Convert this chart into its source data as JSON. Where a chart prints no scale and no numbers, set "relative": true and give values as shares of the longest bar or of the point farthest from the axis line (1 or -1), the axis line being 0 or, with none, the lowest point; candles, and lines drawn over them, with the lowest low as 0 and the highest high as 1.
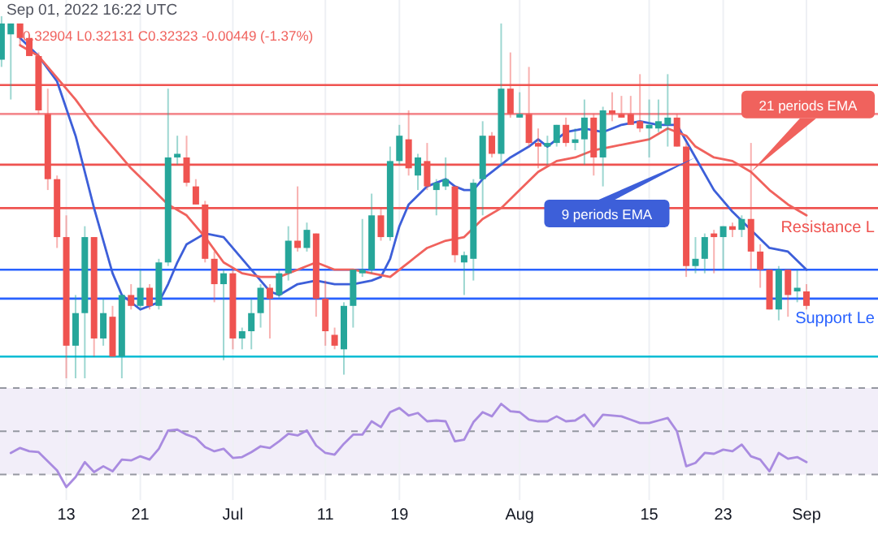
{
  "chart_data": [
    {
      "type": "candlestick",
      "relative": true,
      "tick_labels": false,
      "grid": "x",
      "annotations": [
        "Sep 01, 2022 16:22 UTC",
        "0.32904 L0.32131 C0.32323 -0.00449 (-1.37%)"
      ],
      "xlim": [
        "2022-06-05T20:00",
        "2022-09-08T17:30"
      ],
      "xticks": [
        {
          "value": "2022-06-13",
          "label": null
        },
        {
          "value": "2022-06-21",
          "label": null
        },
        {
          "value": "2022-07-01",
          "label": null
        },
        {
          "value": "2022-07-11",
          "label": null
        },
        {
          "value": "2022-07-19",
          "label": null
        },
        {
          "value": "2022-08-01",
          "label": null
        },
        {
          "value": "2022-08-15",
          "label": null
        },
        {
          "value": "2022-08-23",
          "label": null
        },
        {
          "value": "2022-09-01",
          "label": null
        }
      ],
      "x": [
        "2022-06-06",
        "2022-06-07",
        "2022-06-08",
        "2022-06-09",
        "2022-06-10",
        "2022-06-11",
        "2022-06-12",
        "2022-06-13",
        "2022-06-14",
        "2022-06-15",
        "2022-06-16",
        "2022-06-17",
        "2022-06-18",
        "2022-06-19",
        "2022-06-20",
        "2022-06-21",
        "2022-06-22",
        "2022-06-23",
        "2022-06-24",
        "2022-06-25",
        "2022-06-26",
        "2022-06-27",
        "2022-06-28",
        "2022-06-29",
        "2022-06-30",
        "2022-07-01",
        "2022-07-02",
        "2022-07-03",
        "2022-07-04",
        "2022-07-05",
        "2022-07-06",
        "2022-07-07",
        "2022-07-08",
        "2022-07-09",
        "2022-07-10",
        "2022-07-11",
        "2022-07-12",
        "2022-07-13",
        "2022-07-14",
        "2022-07-15",
        "2022-07-16",
        "2022-07-17",
        "2022-07-18",
        "2022-07-19",
        "2022-07-20",
        "2022-07-21",
        "2022-07-22",
        "2022-07-23",
        "2022-07-24",
        "2022-07-25",
        "2022-07-26",
        "2022-07-27",
        "2022-07-28",
        "2022-07-29",
        "2022-07-30",
        "2022-07-31",
        "2022-08-01",
        "2022-08-02",
        "2022-08-03",
        "2022-08-04",
        "2022-08-05",
        "2022-08-06",
        "2022-08-07",
        "2022-08-08",
        "2022-08-09",
        "2022-08-10",
        "2022-08-11",
        "2022-08-12",
        "2022-08-13",
        "2022-08-14",
        "2022-08-15",
        "2022-08-16",
        "2022-08-17",
        "2022-08-18",
        "2022-08-19",
        "2022-08-20",
        "2022-08-21",
        "2022-08-22",
        "2022-08-23",
        "2022-08-24",
        "2022-08-25",
        "2022-08-26",
        "2022-08-27",
        "2022-08-28",
        "2022-08-29",
        "2022-08-30",
        "2022-08-31",
        "2022-09-01"
      ],
      "ohlc": [
        [
          0.88,
          1.0,
          0.86,
          0.98
        ],
        [
          0.95,
          0.98,
          0.77,
          0.98
        ],
        [
          0.98,
          0.98,
          0.92,
          0.94
        ],
        [
          0.94,
          0.95,
          0.89,
          0.89
        ],
        [
          0.89,
          0.9,
          0.73,
          0.74
        ],
        [
          0.73,
          0.8,
          0.52,
          0.55
        ],
        [
          0.55,
          0.56,
          0.36,
          0.39
        ],
        [
          0.39,
          0.45,
          0,
          0.09
        ],
        [
          0.09,
          0.23,
          0,
          0.18
        ],
        [
          0.18,
          0.42,
          0,
          0.39
        ],
        [
          0.39,
          0.39,
          0.06,
          0.11
        ],
        [
          0.11,
          0.22,
          0.09,
          0.18
        ],
        [
          0.17,
          0.2,
          0.06,
          0.06
        ],
        [
          0.06,
          0.23,
          0,
          0.23
        ],
        [
          0.23,
          0.26,
          0.19,
          0.2
        ],
        [
          0.2,
          0.3,
          0.19,
          0.25
        ],
        [
          0.25,
          0.26,
          0.19,
          0.2
        ],
        [
          0.2,
          0.33,
          0.19,
          0.32
        ],
        [
          0.32,
          0.8,
          0.31,
          0.61
        ],
        [
          0.61,
          0.67,
          0.59,
          0.62
        ],
        [
          0.61,
          0.67,
          0.53,
          0.54
        ],
        [
          0.53,
          0.55,
          0.48,
          0.48
        ],
        [
          0.48,
          0.49,
          0.32,
          0.33
        ],
        [
          0.33,
          0.35,
          0.21,
          0.26
        ],
        [
          0.26,
          0.3,
          0.05,
          0.29
        ],
        [
          0.29,
          0.3,
          0.08,
          0.11
        ],
        [
          0.11,
          0.14,
          0.08,
          0.13
        ],
        [
          0.13,
          0.22,
          0.08,
          0.18
        ],
        [
          0.18,
          0.26,
          0.14,
          0.25
        ],
        [
          0.25,
          0.26,
          0.11,
          0.22
        ],
        [
          0.23,
          0.3,
          0.22,
          0.29
        ],
        [
          0.29,
          0.42,
          0.27,
          0.38
        ],
        [
          0.38,
          0.53,
          0.35,
          0.36
        ],
        [
          0.36,
          0.43,
          0.35,
          0.41
        ],
        [
          0.4,
          0.4,
          0.17,
          0.22
        ],
        [
          0.22,
          0.27,
          0.09,
          0.13
        ],
        [
          0.12,
          0.14,
          0.08,
          0.09
        ],
        [
          0.08,
          0.21,
          0.01,
          0.2
        ],
        [
          0.2,
          0.3,
          0.14,
          0.3
        ],
        [
          0.29,
          0.44,
          0.28,
          0.3
        ],
        [
          0.3,
          0.51,
          0.29,
          0.45
        ],
        [
          0.45,
          0.47,
          0.38,
          0.39
        ],
        [
          0.39,
          0.64,
          0.38,
          0.6
        ],
        [
          0.6,
          0.7,
          0.59,
          0.67
        ],
        [
          0.66,
          0.74,
          0.56,
          0.58
        ],
        [
          0.56,
          0.62,
          0.52,
          0.61
        ],
        [
          0.6,
          0.65,
          0.52,
          0.53
        ],
        [
          0.52,
          0.55,
          0.45,
          0.54
        ],
        [
          0.53,
          0.61,
          0.52,
          0.55
        ],
        [
          0.53,
          0.53,
          0.32,
          0.34
        ],
        [
          0.32,
          0.35,
          0.23,
          0.34
        ],
        [
          0.33,
          0.55,
          0.27,
          0.54
        ],
        [
          0.55,
          0.71,
          0.45,
          0.67
        ],
        [
          0.67,
          0.68,
          0.61,
          0.62
        ],
        [
          0.62,
          0.98,
          0.59,
          0.8
        ],
        [
          0.8,
          0.9,
          0.72,
          0.73
        ],
        [
          0.72,
          0.79,
          0.72,
          0.73
        ],
        [
          0.73,
          0.86,
          0.64,
          0.65
        ],
        [
          0.65,
          0.69,
          0.58,
          0.64
        ],
        [
          0.64,
          0.67,
          0.59,
          0.65
        ],
        [
          0.65,
          0.7,
          0.64,
          0.7
        ],
        [
          0.7,
          0.72,
          0.64,
          0.65
        ],
        [
          0.65,
          0.69,
          0.63,
          0.66
        ],
        [
          0.66,
          0.77,
          0.59,
          0.72
        ],
        [
          0.72,
          0.73,
          0.56,
          0.61
        ],
        [
          0.61,
          0.75,
          0.53,
          0.74
        ],
        [
          0.74,
          0.79,
          0.71,
          0.73
        ],
        [
          0.73,
          0.78,
          0.72,
          0.72
        ],
        [
          0.73,
          0.78,
          0.7,
          0.7
        ],
        [
          0.71,
          0.84,
          0.68,
          0.69
        ],
        [
          0.69,
          0.77,
          0.61,
          0.7
        ],
        [
          0.69,
          0.77,
          0.68,
          0.71
        ],
        [
          0.7,
          0.84,
          0.64,
          0.72
        ],
        [
          0.72,
          0.73,
          0.64,
          0.64
        ],
        [
          0.64,
          0.65,
          0.28,
          0.31
        ],
        [
          0.31,
          0.39,
          0.29,
          0.33
        ],
        [
          0.33,
          0.4,
          0.29,
          0.39
        ],
        [
          0.4,
          0.41,
          0.29,
          0.39
        ],
        [
          0.39,
          0.42,
          0.3,
          0.42
        ],
        [
          0.42,
          0.43,
          0.39,
          0.41
        ],
        [
          0.41,
          0.45,
          0.39,
          0.44
        ],
        [
          0.44,
          0.65,
          0.3,
          0.35
        ],
        [
          0.35,
          0.37,
          0.25,
          0.3
        ],
        [
          0.3,
          0.3,
          0.19,
          0.19
        ],
        [
          0.19,
          0.31,
          0.16,
          0.3
        ],
        [
          0.3,
          0.3,
          0.17,
          0.23
        ],
        [
          0.24,
          0.3,
          0.21,
          0.25
        ],
        [
          0.24,
          0.26,
          0.19,
          0.2
        ]
      ],
      "colors": [
        "#26a69a",
        "#26a69a",
        "#ef5350",
        "#ef5350",
        "#ef5350",
        "#ef5350",
        "#ef5350",
        "#ef5350",
        "#26a69a",
        "#26a69a",
        "#ef5350",
        "#26a69a",
        "#ef5350",
        "#26a69a",
        "#ef5350",
        "#26a69a",
        "#ef5350",
        "#26a69a",
        "#26a69a",
        "#26a69a",
        "#ef5350",
        "#ef5350",
        "#ef5350",
        "#ef5350",
        "#26a69a",
        "#ef5350",
        "#26a69a",
        "#26a69a",
        "#26a69a",
        "#ef5350",
        "#26a69a",
        "#26a69a",
        "#ef5350",
        "#26a69a",
        "#ef5350",
        "#ef5350",
        "#ef5350",
        "#26a69a",
        "#26a69a",
        "#26a69a",
        "#26a69a",
        "#ef5350",
        "#26a69a",
        "#26a69a",
        "#ef5350",
        "#26a69a",
        "#ef5350",
        "#26a69a",
        "#26a69a",
        "#ef5350",
        "#26a69a",
        "#26a69a",
        "#26a69a",
        "#ef5350",
        "#26a69a",
        "#ef5350",
        "#26a69a",
        "#ef5350",
        "#ef5350",
        "#26a69a",
        "#26a69a",
        "#ef5350",
        "#26a69a",
        "#26a69a",
        "#ef5350",
        "#26a69a",
        "#ef5350",
        "#ef5350",
        "#ef5350",
        "#ef5350",
        "#26a69a",
        "#26a69a",
        "#26a69a",
        "#ef5350",
        "#ef5350",
        "#26a69a",
        "#26a69a",
        "#ef5350",
        "#26a69a",
        "#ef5350",
        "#26a69a",
        "#ef5350",
        "#ef5350",
        "#ef5350",
        "#26a69a",
        "#ef5350",
        "#26a69a",
        "#ef5350"
      ],
      "series": [
        {
          "type": "line",
          "name": "9 periods EMA",
          "color": "#3d5fd9",
          "x": [
            "2022-06-08",
            "2022-06-10",
            "2022-06-12",
            "2022-06-14",
            "2022-06-16",
            "2022-06-18",
            "2022-06-19",
            "2022-06-21",
            "2022-06-23",
            "2022-06-24",
            "2022-06-25",
            "2022-06-26",
            "2022-06-28",
            "2022-06-30",
            "2022-07-02",
            "2022-07-04",
            "2022-07-05",
            "2022-07-06",
            "2022-07-08",
            "2022-07-10",
            "2022-07-12",
            "2022-07-14",
            "2022-07-16",
            "2022-07-17",
            "2022-07-18",
            "2022-07-19",
            "2022-07-20",
            "2022-07-22",
            "2022-07-23",
            "2022-07-24",
            "2022-07-25",
            "2022-07-26",
            "2022-07-27",
            "2022-07-28",
            "2022-07-30",
            "2022-07-31",
            "2022-08-02",
            "2022-08-03",
            "2022-08-04",
            "2022-08-06",
            "2022-08-08",
            "2022-08-10",
            "2022-08-12",
            "2022-08-14",
            "2022-08-16",
            "2022-08-18",
            "2022-08-20",
            "2022-08-22",
            "2022-08-24",
            "2022-08-26",
            "2022-08-28",
            "2022-08-30",
            "2022-09-01"
          ],
          "values": [
            0.94,
            0.89,
            0.82,
            0.67,
            0.47,
            0.29,
            0.23,
            0.19,
            0.21,
            0.26,
            0.32,
            0.37,
            0.4,
            0.39,
            0.33,
            0.27,
            0.24,
            0.23,
            0.26,
            0.27,
            0.26,
            0.26,
            0.27,
            0.28,
            0.33,
            0.42,
            0.48,
            0.53,
            0.54,
            0.55,
            0.53,
            0.52,
            0.52,
            0.55,
            0.59,
            0.61,
            0.64,
            0.66,
            0.64,
            0.68,
            0.69,
            0.68,
            0.7,
            0.71,
            0.7,
            0.7,
            0.61,
            0.52,
            0.46,
            0.41,
            0.36,
            0.35,
            0.3
          ]
        },
        {
          "type": "line",
          "name": "21 periods EMA",
          "color": "#f0625d",
          "x": [
            "2022-06-08",
            "2022-06-10",
            "2022-06-12",
            "2022-06-14",
            "2022-06-16",
            "2022-06-18",
            "2022-06-20",
            "2022-06-22",
            "2022-06-24",
            "2022-06-26",
            "2022-06-28",
            "2022-06-30",
            "2022-07-02",
            "2022-07-04",
            "2022-07-06",
            "2022-07-08",
            "2022-07-10",
            "2022-07-12",
            "2022-07-14",
            "2022-07-16",
            "2022-07-18",
            "2022-07-20",
            "2022-07-22",
            "2022-07-24",
            "2022-07-26",
            "2022-07-28",
            "2022-07-30",
            "2022-08-01",
            "2022-08-03",
            "2022-08-05",
            "2022-08-07",
            "2022-08-09",
            "2022-08-11",
            "2022-08-13",
            "2022-08-15",
            "2022-08-17",
            "2022-08-19",
            "2022-08-20",
            "2022-08-22",
            "2022-08-24",
            "2022-08-26",
            "2022-08-28",
            "2022-08-30",
            "2022-09-01"
          ],
          "values": [
            0.92,
            0.89,
            0.83,
            0.77,
            0.7,
            0.64,
            0.58,
            0.53,
            0.48,
            0.45,
            0.39,
            0.32,
            0.29,
            0.28,
            0.28,
            0.3,
            0.32,
            0.3,
            0.3,
            0.29,
            0.28,
            0.32,
            0.36,
            0.38,
            0.39,
            0.44,
            0.47,
            0.52,
            0.57,
            0.6,
            0.61,
            0.63,
            0.64,
            0.65,
            0.66,
            0.69,
            0.67,
            0.64,
            0.61,
            0.6,
            0.57,
            0.52,
            0.48,
            0.45
          ]
        }
      ],
      "ref_lines": [
        {
          "axis": "y",
          "value": 0.81,
          "color": "#ef5350"
        },
        {
          "axis": "y",
          "value": 0.73,
          "color": "#f48a8f"
        },
        {
          "axis": "y",
          "value": 0.59,
          "color": "#ef5350"
        },
        {
          "axis": "y",
          "value": 0.47,
          "color": "#ef5350",
          "label": "Resistance L"
        },
        {
          "axis": "y",
          "value": 0.3,
          "color": "#2962ff"
        },
        {
          "axis": "y",
          "value": 0.22,
          "color": "#2962ff",
          "label": "Support Le"
        },
        {
          "axis": "y",
          "value": 0.06,
          "color": "#00bcd4"
        }
      ]
    },
    {
      "type": "line",
      "relative": true,
      "tick_labels": "x",
      "grid": "x",
      "xlim": [
        "2022-06-05T20:00",
        "2022-09-08T17:30"
      ],
      "xticks": [
        {
          "value": "2022-06-13",
          "label": "13"
        },
        {
          "value": "2022-06-21",
          "label": "21"
        },
        {
          "value": "2022-07-01",
          "label": "Jul"
        },
        {
          "value": "2022-07-11",
          "label": "11"
        },
        {
          "value": "2022-07-19",
          "label": "19"
        },
        {
          "value": "2022-08-01",
          "label": "Aug"
        },
        {
          "value": "2022-08-15",
          "label": "15"
        },
        {
          "value": "2022-08-23",
          "label": "23"
        },
        {
          "value": "2022-09-01",
          "label": "Sep"
        }
      ],
      "x": [
        "2022-06-07",
        "2022-06-08",
        "2022-06-09",
        "2022-06-10",
        "2022-06-11",
        "2022-06-12",
        "2022-06-13",
        "2022-06-14",
        "2022-06-15",
        "2022-06-16",
        "2022-06-17",
        "2022-06-18",
        "2022-06-19",
        "2022-06-20",
        "2022-06-21",
        "2022-06-22",
        "2022-06-23",
        "2022-06-24",
        "2022-06-25",
        "2022-06-26",
        "2022-06-27",
        "2022-06-28",
        "2022-06-29",
        "2022-06-30",
        "2022-07-01",
        "2022-07-02",
        "2022-07-03",
        "2022-07-04",
        "2022-07-05",
        "2022-07-06",
        "2022-07-07",
        "2022-07-08",
        "2022-07-09",
        "2022-07-10",
        "2022-07-11",
        "2022-07-12",
        "2022-07-13",
        "2022-07-14",
        "2022-07-15",
        "2022-07-16",
        "2022-07-17",
        "2022-07-18",
        "2022-07-19",
        "2022-07-20",
        "2022-07-21",
        "2022-07-22",
        "2022-07-23",
        "2022-07-24",
        "2022-07-25",
        "2022-07-26",
        "2022-07-27",
        "2022-07-28",
        "2022-07-29",
        "2022-07-30",
        "2022-07-31",
        "2022-08-01",
        "2022-08-02",
        "2022-08-03",
        "2022-08-04",
        "2022-08-05",
        "2022-08-06",
        "2022-08-07",
        "2022-08-08",
        "2022-08-09",
        "2022-08-10",
        "2022-08-11",
        "2022-08-12",
        "2022-08-13",
        "2022-08-14",
        "2022-08-15",
        "2022-08-16",
        "2022-08-17",
        "2022-08-18",
        "2022-08-19",
        "2022-08-20",
        "2022-08-21",
        "2022-08-22",
        "2022-08-23",
        "2022-08-24",
        "2022-08-25",
        "2022-08-26",
        "2022-08-27",
        "2022-08-28",
        "2022-08-29",
        "2022-08-30",
        "2022-08-31",
        "2022-09-01"
      ],
      "series": [
        {
          "color": "#a98be0",
          "values": [
            0.41,
            0.47,
            0.43,
            0.42,
            0.31,
            0.2,
            0,
            0.12,
            0.3,
            0.18,
            0.25,
            0.19,
            0.33,
            0.32,
            0.37,
            0.33,
            0.46,
            0.68,
            0.69,
            0.63,
            0.59,
            0.48,
            0.43,
            0.46,
            0.35,
            0.36,
            0.42,
            0.49,
            0.47,
            0.55,
            0.64,
            0.62,
            0.68,
            0.5,
            0.41,
            0.39,
            0.52,
            0.63,
            0.63,
            0.79,
            0.72,
            0.9,
            0.95,
            0.86,
            0.89,
            0.79,
            0.8,
            0.79,
            0.55,
            0.57,
            0.78,
            0.9,
            0.85,
            1.0,
            0.91,
            0.9,
            0.81,
            0.79,
            0.79,
            0.85,
            0.79,
            0.8,
            0.87,
            0.73,
            0.87,
            0.86,
            0.85,
            0.81,
            0.77,
            0.77,
            0.8,
            0.83,
            0.67,
            0.25,
            0.29,
            0.41,
            0.4,
            0.45,
            0.43,
            0.51,
            0.37,
            0.33,
            0.19,
            0.41,
            0.34,
            0.36,
            0.3
          ]
        }
      ],
      "ref_lines": [
        {
          "axis": "y",
          "value": 1.19,
          "color": "#9598a1",
          "line_style": "dashed"
        },
        {
          "axis": "y",
          "value": 0.67,
          "color": "#9598a1",
          "line_style": "dashed"
        },
        {
          "axis": "y",
          "value": 0.15,
          "color": "#9598a1",
          "line_style": "dashed"
        }
      ],
      "bands": [
        {
          "axis": "y",
          "from": 0.15,
          "to": 1.19,
          "color": "#7e57c2"
        }
      ]
    }
  ]
}
